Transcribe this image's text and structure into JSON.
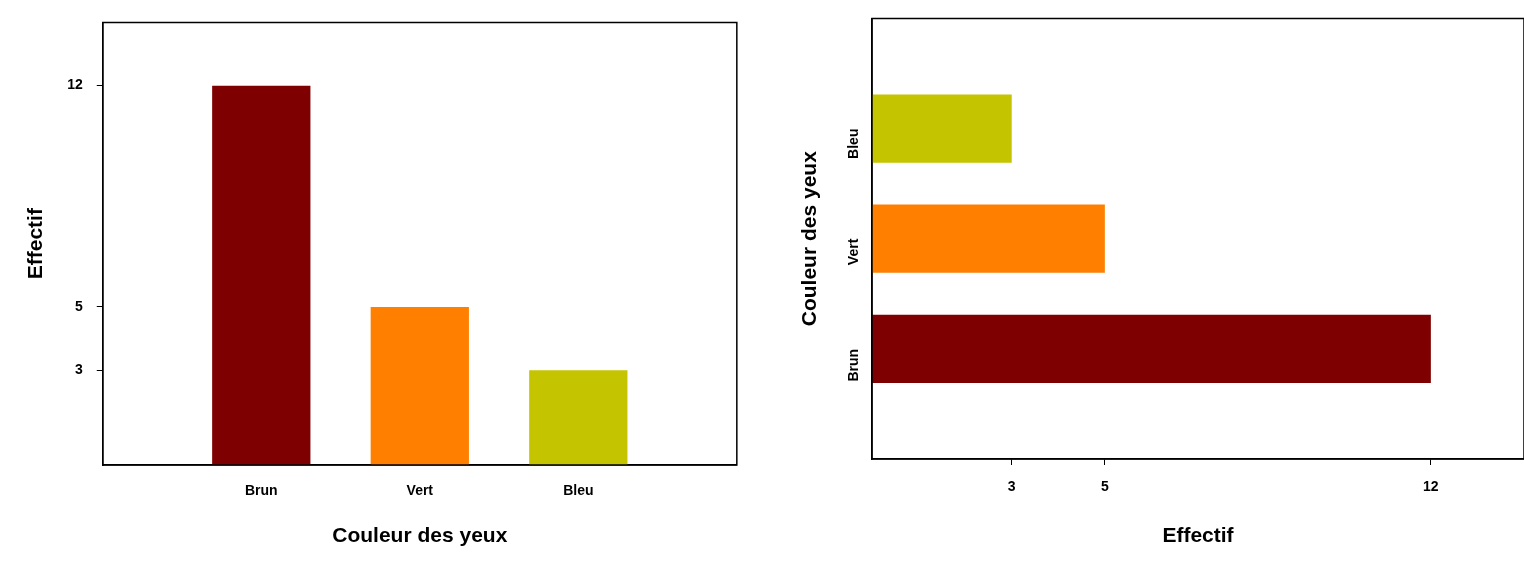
{
  "chart_data": [
    {
      "type": "bar",
      "categories": [
        "Brun",
        "Vert",
        "Bleu"
      ],
      "values": [
        12,
        5,
        3
      ],
      "colors": [
        "#7f0000",
        "#ff8000",
        "#c4c400"
      ],
      "xlabel": "Couleur des yeux",
      "ylabel": "Effectif",
      "ylim": [
        0,
        14
      ],
      "yticks": [
        3,
        5,
        12
      ],
      "grid": false,
      "legend": false
    },
    {
      "type": "bar",
      "orientation": "horizontal",
      "categories": [
        "Bleu",
        "Vert",
        "Brun"
      ],
      "values": [
        3,
        5,
        12
      ],
      "colors": [
        "#c4c400",
        "#ff8000",
        "#7f0000"
      ],
      "xlabel": "Effectif",
      "ylabel": "Couleur des yeux",
      "xlim": [
        0,
        14
      ],
      "xticks": [
        3,
        5,
        12
      ],
      "grid": false,
      "legend": false
    }
  ]
}
